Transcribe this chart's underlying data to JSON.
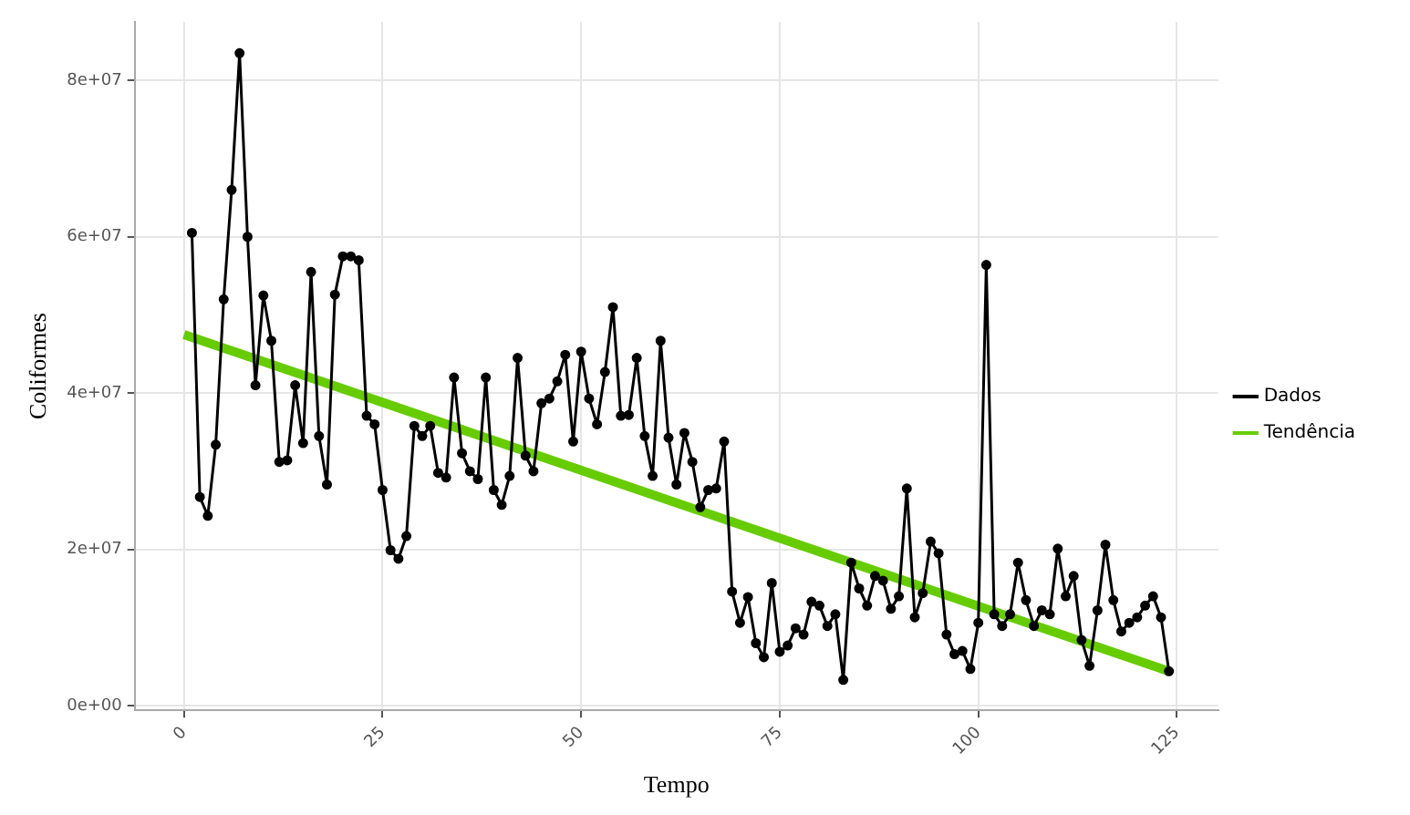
{
  "chart_data": {
    "type": "line",
    "xlabel": "Tempo",
    "ylabel": "Coliformes",
    "xlim": [
      -6.2,
      130.2
    ],
    "xticks": [
      0,
      25,
      50,
      75,
      100,
      125
    ],
    "ylim": [
      -600000,
      87500000
    ],
    "yticks": [
      {
        "value": 0,
        "label": "0e+00"
      },
      {
        "value": 20000000,
        "label": "2e+07"
      },
      {
        "value": 40000000,
        "label": "4e+07"
      },
      {
        "value": 60000000,
        "label": "6e+07"
      },
      {
        "value": 80000000,
        "label": "8e+07"
      }
    ],
    "grid": true,
    "legend": "right",
    "line_style": "solid",
    "series": [
      {
        "name": "Dados",
        "color": "#000000",
        "marker": "circle",
        "x": [
          1,
          2,
          3,
          4,
          5,
          6,
          7,
          8,
          9,
          10,
          11,
          12,
          13,
          14,
          15,
          16,
          17,
          18,
          19,
          20,
          21,
          22,
          23,
          24,
          25,
          26,
          27,
          28,
          29,
          30,
          31,
          32,
          33,
          34,
          35,
          36,
          37,
          38,
          39,
          40,
          41,
          42,
          43,
          44,
          45,
          46,
          47,
          48,
          49,
          50,
          51,
          52,
          53,
          54,
          55,
          56,
          57,
          58,
          59,
          60,
          61,
          62,
          63,
          64,
          65,
          66,
          67,
          68,
          69,
          70,
          71,
          72,
          73,
          74,
          75,
          76,
          77,
          78,
          79,
          80,
          81,
          82,
          83,
          84,
          85,
          86,
          87,
          88,
          89,
          90,
          91,
          92,
          93,
          94,
          95,
          96,
          97,
          98,
          99,
          100,
          101,
          102,
          103,
          104,
          105,
          106,
          107,
          108,
          109,
          110,
          111,
          112,
          113,
          114,
          115,
          116,
          117,
          118,
          119,
          120,
          121,
          122,
          123,
          124
        ],
        "values": [
          60500000,
          26700000,
          24300000,
          33400000,
          52000000,
          66000000,
          83500000,
          60000000,
          41000000,
          52500000,
          46700000,
          31200000,
          31400000,
          41000000,
          33600000,
          55500000,
          34500000,
          28300000,
          52600000,
          57500000,
          57500000,
          57000000,
          37100000,
          36000000,
          27600000,
          19900000,
          18800000,
          21700000,
          35800000,
          34500000,
          35800000,
          29800000,
          29200000,
          42000000,
          32300000,
          30000000,
          29000000,
          42000000,
          27600000,
          25700000,
          29400000,
          44500000,
          32000000,
          30000000,
          38700000,
          39300000,
          41500000,
          44900000,
          33800000,
          45300000,
          39300000,
          36000000,
          42700000,
          51000000,
          37100000,
          37200000,
          44500000,
          34500000,
          29400000,
          46700000,
          34300000,
          28300000,
          34900000,
          31200000,
          25400000,
          27600000,
          27800000,
          33800000,
          14600000,
          10600000,
          13900000,
          8000000,
          6200000,
          15700000,
          6900000,
          7700000,
          9900000,
          9100000,
          13300000,
          12800000,
          10200000,
          11700000,
          3300000,
          18300000,
          15000000,
          12800000,
          16600000,
          16000000,
          12400000,
          14000000,
          27800000,
          11300000,
          14400000,
          21000000,
          19500000,
          9100000,
          6600000,
          7000000,
          4700000,
          10600000,
          56400000,
          11700000,
          10200000,
          11700000,
          18300000,
          13500000,
          10200000,
          12200000,
          11700000,
          20100000,
          14000000,
          16600000,
          8400000,
          5100000,
          12200000,
          20600000,
          13500000,
          9500000,
          10600000,
          11300000,
          12800000,
          14000000,
          11300000,
          4400000
        ]
      },
      {
        "name": "Tendência",
        "color": "#66cc00",
        "marker": "none",
        "x": [
          0,
          124
        ],
        "values": [
          47500000,
          4400000
        ]
      }
    ]
  }
}
